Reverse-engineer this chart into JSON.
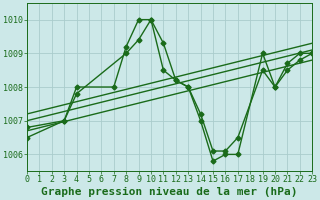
{
  "title": "Graphe pression niveau de la mer (hPa)",
  "bg_color": "#cce8e8",
  "grid_color": "#aacccc",
  "line_color": "#1a6b1a",
  "xlim": [
    0,
    23
  ],
  "ylim": [
    1005.5,
    1010.5
  ],
  "yticks": [
    1006,
    1007,
    1008,
    1009,
    1010
  ],
  "xticks": [
    0,
    1,
    2,
    3,
    4,
    5,
    6,
    7,
    8,
    9,
    10,
    11,
    12,
    13,
    14,
    15,
    16,
    17,
    18,
    19,
    20,
    21,
    22,
    23
  ],
  "line1_x": [
    0,
    3,
    4,
    7,
    8,
    9,
    10,
    11,
    12,
    13,
    14,
    15,
    16,
    17,
    19,
    20,
    21,
    22,
    23
  ],
  "line1_y": [
    1006.5,
    1007.0,
    1008.0,
    1008.0,
    1009.2,
    1010.0,
    1010.0,
    1009.3,
    1008.2,
    1008.0,
    1007.0,
    1005.8,
    1006.0,
    1006.0,
    1009.0,
    1008.0,
    1008.7,
    1009.0,
    1009.0
  ],
  "line2_x": [
    0,
    3,
    4,
    8,
    9,
    10,
    11,
    12,
    13,
    14,
    15,
    16,
    17,
    19,
    20,
    21,
    22,
    23
  ],
  "line2_y": [
    1006.8,
    1007.0,
    1007.8,
    1009.0,
    1009.4,
    1010.0,
    1008.5,
    1008.2,
    1008.0,
    1007.2,
    1006.1,
    1006.1,
    1006.5,
    1008.5,
    1008.0,
    1008.5,
    1008.8,
    1009.0
  ],
  "trend1_x": [
    0,
    23
  ],
  "trend1_y": [
    1006.7,
    1008.8
  ],
  "trend2_x": [
    0,
    23
  ],
  "trend2_y": [
    1007.0,
    1009.1
  ],
  "trend3_x": [
    0,
    23
  ],
  "trend3_y": [
    1007.2,
    1009.3
  ],
  "title_fontsize": 8,
  "tick_fontsize": 6
}
